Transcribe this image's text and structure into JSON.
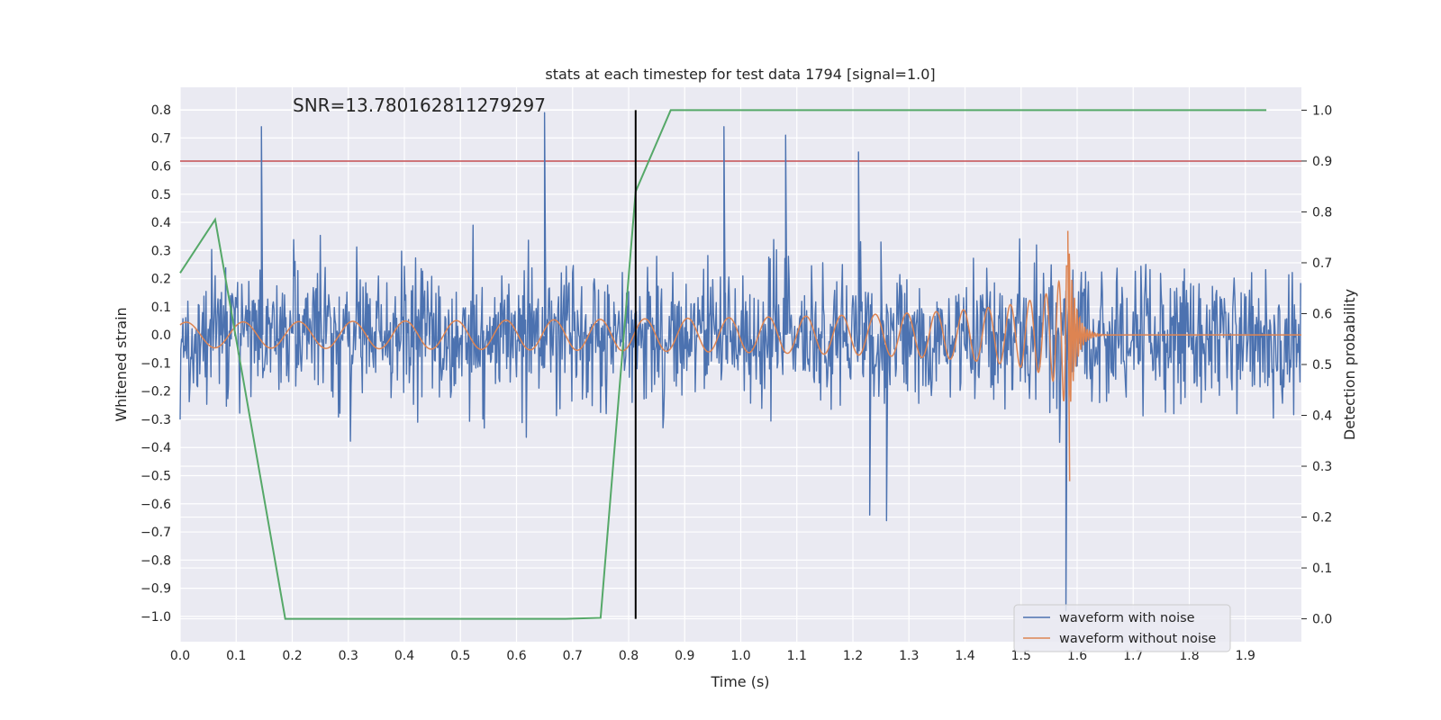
{
  "chart_data": {
    "type": "line",
    "title": "stats at each timestep for test data 1794 [signal=1.0]",
    "xlabel": "Time (s)",
    "ylabel_left": "Whitened strain",
    "ylabel_right": "Detection probability",
    "xlim": [
      0.0,
      2.0
    ],
    "ylim_left": [
      -1.09,
      0.88
    ],
    "ylim_right": [
      -0.045,
      1.045
    ],
    "xticks": [
      "0.0",
      "0.1",
      "0.2",
      "0.3",
      "0.4",
      "0.5",
      "0.6",
      "0.7",
      "0.8",
      "0.9",
      "1.0",
      "1.1",
      "1.2",
      "1.3",
      "1.4",
      "1.5",
      "1.6",
      "1.7",
      "1.8",
      "1.9"
    ],
    "yticks_left": [
      "0.8",
      "0.7",
      "0.6",
      "0.5",
      "0.4",
      "0.3",
      "0.2",
      "0.1",
      "0.0",
      "−0.1",
      "−0.2",
      "−0.3",
      "−0.4",
      "−0.5",
      "−0.6",
      "−0.7",
      "−0.8",
      "−0.9",
      "−1.0"
    ],
    "yticks_right": [
      "1.0",
      "0.9",
      "0.8",
      "0.7",
      "0.6",
      "0.5",
      "0.4",
      "0.3",
      "0.2",
      "0.1",
      "0.0"
    ],
    "annotation": "SNR=13.780162811279297",
    "grid": true,
    "legend_position": "lower-right",
    "series": [
      {
        "name": "waveform with noise",
        "color": "#4c72b0",
        "axis": "left",
        "description": "whitened noisy strain, approx 0 +/- 0.3 with spikes",
        "peaks": [
          [
            0.145,
            0.74
          ],
          [
            0.65,
            0.79
          ],
          [
            0.97,
            0.74
          ],
          [
            1.08,
            0.71
          ],
          [
            1.21,
            0.65
          ],
          [
            1.58,
            -0.98
          ],
          [
            1.23,
            -0.64
          ],
          [
            1.26,
            -0.66
          ],
          [
            1.25,
            0.33
          ]
        ]
      },
      {
        "name": "waveform without noise",
        "color": "#dd8452",
        "axis": "left",
        "description": "chirp signal, amplitude ~0.04 growing to merger near t=1.58 s",
        "merger_time": 1.585,
        "merger_peak": [
          0.37,
          -0.52
        ]
      },
      {
        "name": "detection probability",
        "color": "#55a868",
        "axis": "right",
        "x": [
          0.0,
          0.0625,
          0.1875,
          0.25,
          0.6875,
          0.75,
          0.8125,
          0.875,
          1.9375
        ],
        "y": [
          0.68,
          0.785,
          0.0,
          0.0,
          0.0,
          0.002,
          0.84,
          1.0,
          1.0
        ]
      }
    ],
    "threshold": {
      "value": 0.9,
      "axis": "right",
      "color": "#c44e52"
    },
    "marker": {
      "x": 0.8125,
      "color": "#000000"
    }
  },
  "legend": {
    "items": [
      "waveform with noise",
      "waveform without noise"
    ]
  }
}
